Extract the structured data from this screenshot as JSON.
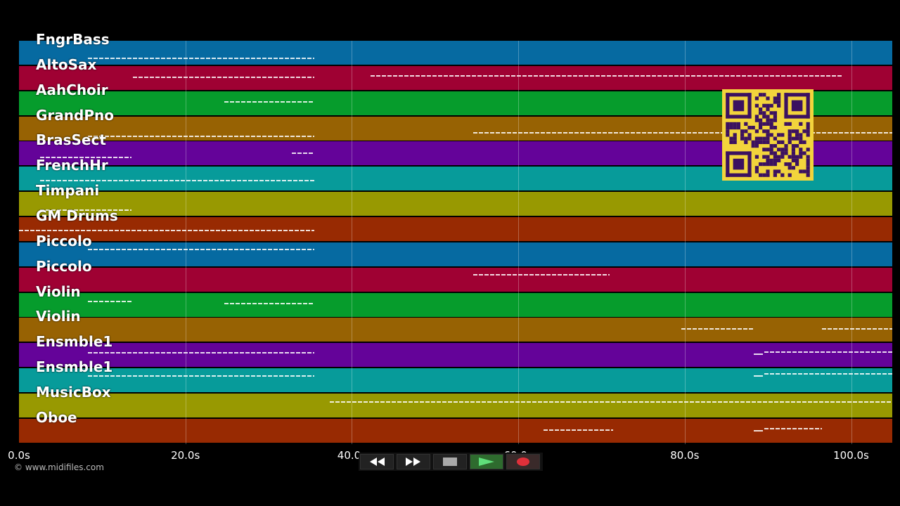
{
  "tracks": [
    {
      "name": "FngrBass",
      "color": "#066aa1"
    },
    {
      "name": "AltoSax",
      "color": "#9f0133"
    },
    {
      "name": "AahChoir",
      "color": "#069c2c"
    },
    {
      "name": "GrandPno",
      "color": "#976203"
    },
    {
      "name": "BrasSect",
      "color": "#640399"
    },
    {
      "name": "FrenchHr",
      "color": "#079b9a"
    },
    {
      "name": "Timpani",
      "color": "#989901"
    },
    {
      "name": "GM Drums",
      "color": "#982a02"
    },
    {
      "name": "Piccolo",
      "color": "#066aa1"
    },
    {
      "name": "Piccolo",
      "color": "#9f0133"
    },
    {
      "name": "Violin",
      "color": "#069c2c"
    },
    {
      "name": "Violin",
      "color": "#976203"
    },
    {
      "name": "Ensmble1",
      "color": "#640399"
    },
    {
      "name": "Ensmble1",
      "color": "#079b9a"
    },
    {
      "name": "MusicBox",
      "color": "#989901"
    },
    {
      "name": "Oboe",
      "color": "#982a02"
    }
  ],
  "timeline": {
    "ticks": [
      "0.0s",
      "20.0s",
      "40.0s",
      "60.0s",
      "80.0s",
      "100.0s"
    ]
  },
  "copyright": "© www.midifiles.com",
  "transport": {
    "rewind": "rewind-icon",
    "forward": "fast-forward-icon",
    "stop": "stop-icon",
    "play": "play-icon",
    "record": "record-icon"
  }
}
